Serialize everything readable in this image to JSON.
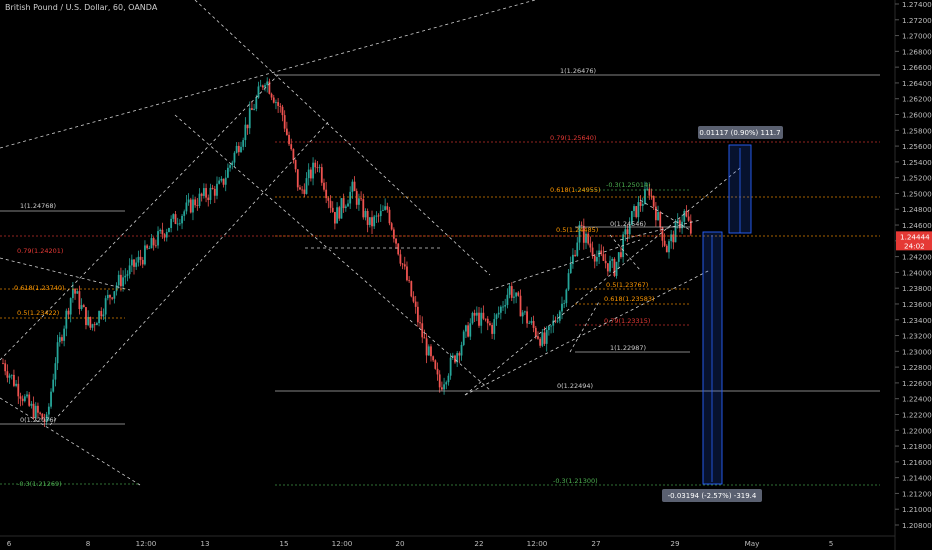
{
  "header": {
    "title": "British Pound / U.S. Dollar, 60, OANDA"
  },
  "colors": {
    "background": "#000000",
    "bull": "#26a69a",
    "bear": "#ef5350",
    "fib_red": "#e53935",
    "fib_orange": "#ff9800",
    "fib_green": "#4caf50",
    "fib_gray": "#cfcfcf",
    "measure_box": "#2962ff",
    "price_tag_bg": "#e53935"
  },
  "price_axis": {
    "labels": [
      "1.27400",
      "1.27200",
      "1.27000",
      "1.26800",
      "1.26600",
      "1.26400",
      "1.26200",
      "1.26000",
      "1.25800",
      "1.25600",
      "1.25400",
      "1.25200",
      "1.25000",
      "1.24800",
      "1.24600",
      "1.24400",
      "1.24200",
      "1.24000",
      "1.23800",
      "1.23600",
      "1.23400",
      "1.23200",
      "1.23000",
      "1.22800",
      "1.22600",
      "1.22400",
      "1.22200",
      "1.22000",
      "1.21800",
      "1.21600",
      "1.21400",
      "1.21200",
      "1.21000",
      "1.20800"
    ],
    "current_price": "1.24444",
    "countdown": "24:02"
  },
  "time_axis": {
    "labels": [
      "6",
      "8",
      "12:00",
      "13",
      "15",
      "12:00",
      "20",
      "22",
      "12:00",
      "27",
      "29",
      "May",
      "5"
    ]
  },
  "fib_levels": [
    {
      "text": "1(1.26476)",
      "color": "gray"
    },
    {
      "text": "0.79(1.25640)",
      "color": "red"
    },
    {
      "text": "0.618(1.24955)",
      "color": "orange"
    },
    {
      "text": "0.5(1.24485)",
      "color": "orange"
    },
    {
      "text": "0(1.22494)",
      "color": "gray"
    },
    {
      "text": "-0.3(1.21300)",
      "color": "green"
    },
    {
      "text": "1(1.24768)",
      "color": "gray"
    },
    {
      "text": "0.79(1.24201)",
      "color": "red"
    },
    {
      "text": "0.618(1.23740)",
      "color": "orange"
    },
    {
      "text": "0.5(1.23422)",
      "color": "orange"
    },
    {
      "text": "0(1.22076)",
      "color": "gray"
    },
    {
      "text": "-0.3(1.21269)",
      "color": "green"
    },
    {
      "text": "-0.3(1.25014)",
      "color": "green"
    },
    {
      "text": "0(1.24546)",
      "color": "gray"
    },
    {
      "text": "0.5(1.23767)",
      "color": "orange"
    },
    {
      "text": "0.618(1.23583)",
      "color": "orange"
    },
    {
      "text": "0.79(1.23315)",
      "color": "red"
    },
    {
      "text": "1(1.22987)",
      "color": "gray"
    }
  ],
  "measure": {
    "up_label": "0.01117 (0.90%) 111.7",
    "down_label": "-0.03194 (-2.57%) -319.4"
  },
  "chart_data": {
    "type": "candlestick",
    "title": "British Pound / U.S. Dollar, 60, OANDA",
    "symbol": "GBPUSD",
    "timeframe": "60",
    "ylim": [
      1.207,
      1.275
    ],
    "x_tick_labels": [
      "6",
      "8",
      "12:00",
      "13",
      "15",
      "12:00",
      "20",
      "22",
      "12:00",
      "27",
      "29",
      "May",
      "5"
    ],
    "close_path": [
      [
        0,
        1.2285
      ],
      [
        3,
        1.223
      ],
      [
        5,
        1.221
      ],
      [
        6,
        1.229
      ],
      [
        8,
        1.238
      ],
      [
        10,
        1.233
      ],
      [
        13,
        1.2385
      ],
      [
        16,
        1.242
      ],
      [
        19,
        1.246
      ],
      [
        22,
        1.249
      ],
      [
        25,
        1.251
      ],
      [
        28,
        1.259
      ],
      [
        30,
        1.2647
      ],
      [
        32,
        1.26
      ],
      [
        34,
        1.25
      ],
      [
        36,
        1.254
      ],
      [
        38,
        1.247
      ],
      [
        40,
        1.2505
      ],
      [
        42,
        1.246
      ],
      [
        44,
        1.248
      ],
      [
        46,
        1.24
      ],
      [
        48,
        1.232
      ],
      [
        50,
        1.2255
      ],
      [
        52,
        1.23
      ],
      [
        54,
        1.2345
      ],
      [
        56,
        1.233
      ],
      [
        58,
        1.238
      ],
      [
        60,
        1.234
      ],
      [
        62,
        1.231
      ],
      [
        64,
        1.236
      ],
      [
        66,
        1.2455
      ],
      [
        68,
        1.242
      ],
      [
        70,
        1.2405
      ],
      [
        72,
        1.247
      ],
      [
        74,
        1.2505
      ],
      [
        76,
        1.243
      ],
      [
        78,
        1.2475
      ],
      [
        79,
        1.2444
      ]
    ]
  }
}
